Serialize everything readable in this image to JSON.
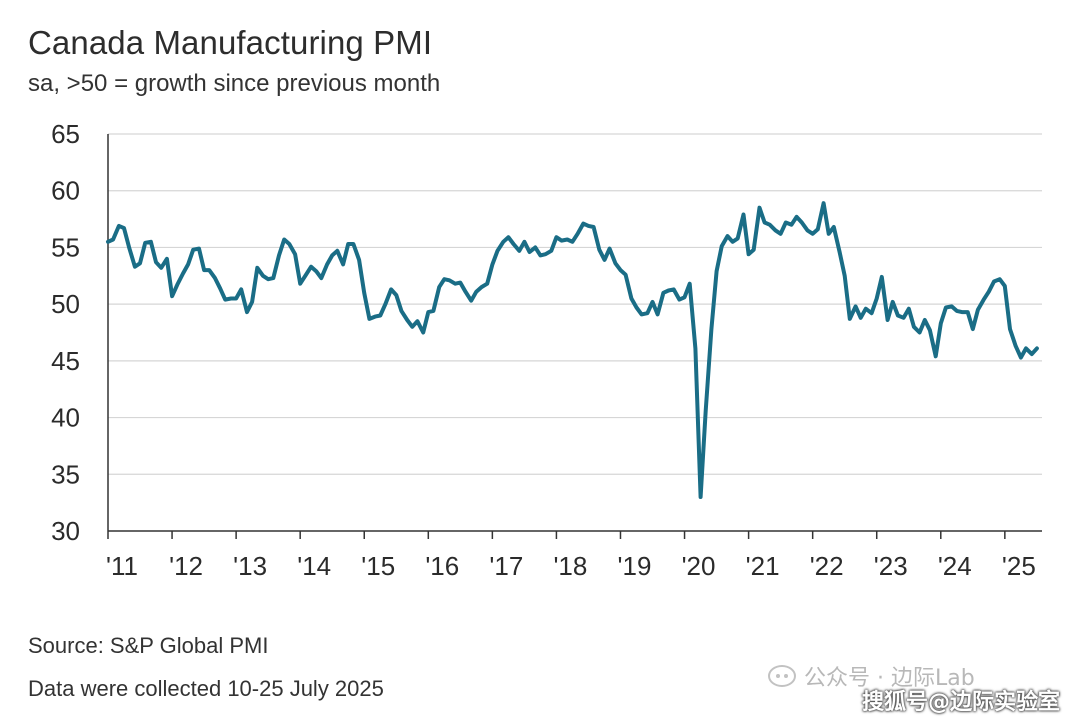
{
  "title": "Canada Manufacturing PMI",
  "subtitle": "sa, >50 = growth since previous month",
  "footer": {
    "source": "Source: S&P Global PMI",
    "note": "Data were collected 10-25 July 2025"
  },
  "watermarks": {
    "top": "公众号 · 边际Lab",
    "bottom": "搜狐号@边际实验室"
  },
  "colors": {
    "line": "#1a6d86",
    "grid": "#d6d6d6",
    "axis": "#333333",
    "text": "#2b2b2b"
  },
  "chart_data": {
    "type": "line",
    "title": "Canada Manufacturing PMI",
    "subtitle": "sa, >50 = growth since previous month",
    "xlabel": "",
    "ylabel": "",
    "ylim": [
      30,
      65
    ],
    "yticks": [
      30,
      35,
      40,
      45,
      50,
      55,
      60,
      65
    ],
    "xlim": [
      2011.0,
      2025.58
    ],
    "xticks": [
      {
        "x": 2011,
        "label": "'11"
      },
      {
        "x": 2012,
        "label": "'12"
      },
      {
        "x": 2013,
        "label": "'13"
      },
      {
        "x": 2014,
        "label": "'14"
      },
      {
        "x": 2015,
        "label": "'15"
      },
      {
        "x": 2016,
        "label": "'16"
      },
      {
        "x": 2017,
        "label": "'17"
      },
      {
        "x": 2018,
        "label": "'18"
      },
      {
        "x": 2019,
        "label": "'19"
      },
      {
        "x": 2020,
        "label": "'20"
      },
      {
        "x": 2021,
        "label": "'21"
      },
      {
        "x": 2022,
        "label": "'22"
      },
      {
        "x": 2023,
        "label": "'23"
      },
      {
        "x": 2024,
        "label": "'24"
      },
      {
        "x": 2025,
        "label": "'25"
      }
    ],
    "grid": "horizontal",
    "legend": "none",
    "series": [
      {
        "points": [
          [
            2011.0,
            55.5
          ],
          [
            2011.08,
            55.7
          ],
          [
            2011.17,
            56.9
          ],
          [
            2011.25,
            56.7
          ],
          [
            2011.33,
            55.0
          ],
          [
            2011.42,
            53.3
          ],
          [
            2011.5,
            53.6
          ],
          [
            2011.58,
            55.4
          ],
          [
            2011.67,
            55.5
          ],
          [
            2011.75,
            53.7
          ],
          [
            2011.83,
            53.2
          ],
          [
            2011.92,
            54.0
          ],
          [
            2012.0,
            50.7
          ],
          [
            2012.08,
            51.7
          ],
          [
            2012.17,
            52.7
          ],
          [
            2012.25,
            53.5
          ],
          [
            2012.33,
            54.8
          ],
          [
            2012.42,
            54.9
          ],
          [
            2012.5,
            53.0
          ],
          [
            2012.58,
            53.0
          ],
          [
            2012.67,
            52.3
          ],
          [
            2012.75,
            51.4
          ],
          [
            2012.83,
            50.4
          ],
          [
            2012.92,
            50.5
          ],
          [
            2013.0,
            50.5
          ],
          [
            2013.08,
            51.3
          ],
          [
            2013.17,
            49.3
          ],
          [
            2013.25,
            50.2
          ],
          [
            2013.33,
            53.2
          ],
          [
            2013.42,
            52.5
          ],
          [
            2013.5,
            52.2
          ],
          [
            2013.58,
            52.3
          ],
          [
            2013.67,
            54.3
          ],
          [
            2013.75,
            55.7
          ],
          [
            2013.83,
            55.3
          ],
          [
            2013.92,
            54.4
          ],
          [
            2014.0,
            51.8
          ],
          [
            2014.08,
            52.5
          ],
          [
            2014.17,
            53.3
          ],
          [
            2014.25,
            52.9
          ],
          [
            2014.33,
            52.3
          ],
          [
            2014.42,
            53.5
          ],
          [
            2014.5,
            54.3
          ],
          [
            2014.58,
            54.7
          ],
          [
            2014.67,
            53.5
          ],
          [
            2014.75,
            55.3
          ],
          [
            2014.83,
            55.3
          ],
          [
            2014.92,
            53.9
          ],
          [
            2015.0,
            51.0
          ],
          [
            2015.08,
            48.7
          ],
          [
            2015.17,
            48.9
          ],
          [
            2015.25,
            49.0
          ],
          [
            2015.33,
            50.0
          ],
          [
            2015.42,
            51.3
          ],
          [
            2015.5,
            50.8
          ],
          [
            2015.58,
            49.4
          ],
          [
            2015.67,
            48.6
          ],
          [
            2015.75,
            48.0
          ],
          [
            2015.83,
            48.5
          ],
          [
            2015.92,
            47.5
          ],
          [
            2016.0,
            49.3
          ],
          [
            2016.08,
            49.4
          ],
          [
            2016.17,
            51.5
          ],
          [
            2016.25,
            52.2
          ],
          [
            2016.33,
            52.1
          ],
          [
            2016.42,
            51.8
          ],
          [
            2016.5,
            51.9
          ],
          [
            2016.58,
            51.1
          ],
          [
            2016.67,
            50.3
          ],
          [
            2016.75,
            51.1
          ],
          [
            2016.83,
            51.5
          ],
          [
            2016.92,
            51.8
          ],
          [
            2017.0,
            53.5
          ],
          [
            2017.08,
            54.7
          ],
          [
            2017.17,
            55.5
          ],
          [
            2017.25,
            55.9
          ],
          [
            2017.33,
            55.3
          ],
          [
            2017.42,
            54.7
          ],
          [
            2017.5,
            55.5
          ],
          [
            2017.58,
            54.6
          ],
          [
            2017.67,
            55.0
          ],
          [
            2017.75,
            54.3
          ],
          [
            2017.83,
            54.4
          ],
          [
            2017.92,
            54.7
          ],
          [
            2018.0,
            55.9
          ],
          [
            2018.08,
            55.6
          ],
          [
            2018.17,
            55.7
          ],
          [
            2018.25,
            55.5
          ],
          [
            2018.33,
            56.2
          ],
          [
            2018.42,
            57.1
          ],
          [
            2018.5,
            56.9
          ],
          [
            2018.58,
            56.8
          ],
          [
            2018.67,
            54.8
          ],
          [
            2018.75,
            53.9
          ],
          [
            2018.83,
            54.9
          ],
          [
            2018.92,
            53.6
          ],
          [
            2019.0,
            53.0
          ],
          [
            2019.08,
            52.6
          ],
          [
            2019.17,
            50.5
          ],
          [
            2019.25,
            49.7
          ],
          [
            2019.33,
            49.1
          ],
          [
            2019.42,
            49.2
          ],
          [
            2019.5,
            50.2
          ],
          [
            2019.58,
            49.1
          ],
          [
            2019.67,
            51.0
          ],
          [
            2019.75,
            51.2
          ],
          [
            2019.83,
            51.3
          ],
          [
            2019.92,
            50.4
          ],
          [
            2020.0,
            50.6
          ],
          [
            2020.08,
            51.8
          ],
          [
            2020.17,
            46.1
          ],
          [
            2020.25,
            33.0
          ],
          [
            2020.33,
            40.6
          ],
          [
            2020.42,
            47.8
          ],
          [
            2020.5,
            52.9
          ],
          [
            2020.58,
            55.1
          ],
          [
            2020.67,
            56.0
          ],
          [
            2020.75,
            55.5
          ],
          [
            2020.83,
            55.8
          ],
          [
            2020.92,
            57.9
          ],
          [
            2021.0,
            54.4
          ],
          [
            2021.08,
            54.8
          ],
          [
            2021.17,
            58.5
          ],
          [
            2021.25,
            57.2
          ],
          [
            2021.33,
            57.0
          ],
          [
            2021.42,
            56.5
          ],
          [
            2021.5,
            56.2
          ],
          [
            2021.58,
            57.2
          ],
          [
            2021.67,
            57.0
          ],
          [
            2021.75,
            57.7
          ],
          [
            2021.83,
            57.2
          ],
          [
            2021.92,
            56.5
          ],
          [
            2022.0,
            56.2
          ],
          [
            2022.08,
            56.6
          ],
          [
            2022.17,
            58.9
          ],
          [
            2022.25,
            56.2
          ],
          [
            2022.33,
            56.8
          ],
          [
            2022.42,
            54.6
          ],
          [
            2022.5,
            52.5
          ],
          [
            2022.58,
            48.7
          ],
          [
            2022.67,
            49.8
          ],
          [
            2022.75,
            48.8
          ],
          [
            2022.83,
            49.6
          ],
          [
            2022.92,
            49.2
          ],
          [
            2023.0,
            50.5
          ],
          [
            2023.08,
            52.4
          ],
          [
            2023.17,
            48.6
          ],
          [
            2023.25,
            50.2
          ],
          [
            2023.33,
            49.0
          ],
          [
            2023.42,
            48.8
          ],
          [
            2023.5,
            49.6
          ],
          [
            2023.58,
            48.0
          ],
          [
            2023.67,
            47.5
          ],
          [
            2023.75,
            48.6
          ],
          [
            2023.83,
            47.7
          ],
          [
            2023.92,
            45.4
          ],
          [
            2024.0,
            48.3
          ],
          [
            2024.08,
            49.7
          ],
          [
            2024.17,
            49.8
          ],
          [
            2024.25,
            49.4
          ],
          [
            2024.33,
            49.3
          ],
          [
            2024.42,
            49.3
          ],
          [
            2024.5,
            47.8
          ],
          [
            2024.58,
            49.5
          ],
          [
            2024.67,
            50.4
          ],
          [
            2024.75,
            51.1
          ],
          [
            2024.83,
            52.0
          ],
          [
            2024.92,
            52.2
          ],
          [
            2025.0,
            51.6
          ],
          [
            2025.08,
            47.8
          ],
          [
            2025.17,
            46.3
          ],
          [
            2025.25,
            45.3
          ],
          [
            2025.33,
            46.1
          ],
          [
            2025.42,
            45.6
          ],
          [
            2025.5,
            46.1
          ]
        ]
      }
    ]
  }
}
